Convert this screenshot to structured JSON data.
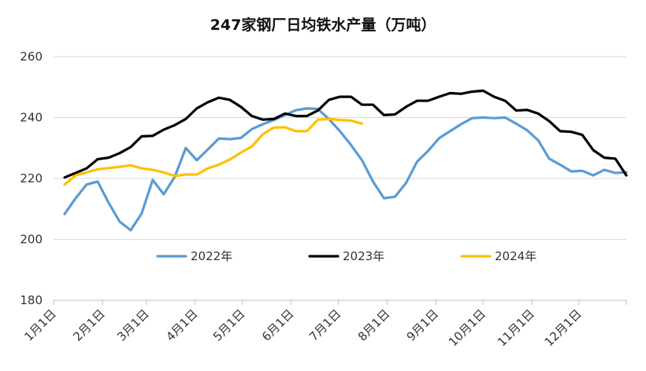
{
  "chart_data": {
    "type": "line",
    "title": "247家钢厂日均铁水产量（万吨）",
    "xlabel": "",
    "ylabel": "",
    "ylim": [
      180,
      260
    ],
    "yticks": [
      180,
      200,
      220,
      240,
      260
    ],
    "grid": "horizontal",
    "legend_position": "inside-bottom",
    "x_domain_weeks": [
      0,
      52
    ],
    "xticks": [
      {
        "label": "1月1日",
        "week": 0
      },
      {
        "label": "2月1日",
        "week": 4.43
      },
      {
        "label": "3月1日",
        "week": 8.43
      },
      {
        "label": "4月1日",
        "week": 12.86
      },
      {
        "label": "5月1日",
        "week": 17.14
      },
      {
        "label": "6月1日",
        "week": 21.57
      },
      {
        "label": "7月1日",
        "week": 25.86
      },
      {
        "label": "8月1日",
        "week": 30.29
      },
      {
        "label": "9月1日",
        "week": 34.71
      },
      {
        "label": "10月1日",
        "week": 39
      },
      {
        "label": "11月1日",
        "week": 43.43
      },
      {
        "label": "12月1日",
        "week": 47.71
      }
    ],
    "series": [
      {
        "name": "2022年",
        "color": "#5b9bd5",
        "x": [
          1,
          2,
          3,
          4,
          5,
          6,
          7,
          8,
          9,
          10,
          11,
          12,
          13,
          14,
          15,
          16,
          17,
          18,
          19,
          20,
          21,
          22,
          23,
          24,
          25,
          26,
          27,
          28,
          29,
          30,
          31,
          32,
          33,
          34,
          35,
          36,
          37,
          38,
          39,
          40,
          41,
          42,
          43,
          44,
          45,
          46,
          47,
          48,
          49,
          50,
          51,
          52
        ],
        "values": [
          208.3,
          213.5,
          218.0,
          219.0,
          212.0,
          205.8,
          203.0,
          208.5,
          219.5,
          214.8,
          220.5,
          230.0,
          226.0,
          229.5,
          233.1,
          232.9,
          233.3,
          236.2,
          237.8,
          239.2,
          240.8,
          242.4,
          243.0,
          242.8,
          239.5,
          235.5,
          231.0,
          226.0,
          219.0,
          213.5,
          214.0,
          218.5,
          225.5,
          229.0,
          233.2,
          235.5,
          237.8,
          239.8,
          240.0,
          239.8,
          240.0,
          238.0,
          235.8,
          232.5,
          226.5,
          224.5,
          222.3,
          222.5,
          221.0,
          222.8,
          221.8,
          222.0
        ]
      },
      {
        "name": "2023年",
        "color": "#000000",
        "x": [
          1,
          2,
          3,
          4,
          5,
          6,
          7,
          8,
          9,
          10,
          11,
          12,
          13,
          14,
          15,
          16,
          17,
          18,
          19,
          20,
          21,
          22,
          23,
          24,
          25,
          26,
          27,
          28,
          29,
          30,
          31,
          32,
          33,
          34,
          35,
          36,
          37,
          38,
          39,
          40,
          41,
          42,
          43,
          44,
          45,
          46,
          47,
          48,
          49,
          50,
          51,
          52
        ],
        "values": [
          220.3,
          221.8,
          223.3,
          226.3,
          226.8,
          228.3,
          230.3,
          233.8,
          234.0,
          236.0,
          237.5,
          239.5,
          243.0,
          245.0,
          246.5,
          245.8,
          243.5,
          240.5,
          239.3,
          239.5,
          241.3,
          240.5,
          240.5,
          242.3,
          245.8,
          246.8,
          246.8,
          244.2,
          244.2,
          240.8,
          241.0,
          243.5,
          245.5,
          245.5,
          246.8,
          248.0,
          247.8,
          248.5,
          248.8,
          246.8,
          245.5,
          242.3,
          242.5,
          241.3,
          238.8,
          235.5,
          235.3,
          234.3,
          229.3,
          226.8,
          226.5,
          221.0
        ]
      },
      {
        "name": "2024年",
        "color": "#ffc000",
        "x": [
          1,
          2,
          3,
          4,
          5,
          6,
          7,
          8,
          9,
          10,
          11,
          12,
          13,
          14,
          15,
          16,
          17,
          18,
          19,
          20,
          21,
          22,
          23,
          24,
          25,
          26,
          27,
          28
        ],
        "values": [
          218.0,
          221.0,
          222.0,
          223.0,
          223.4,
          223.8,
          224.3,
          223.3,
          222.8,
          222.0,
          220.8,
          221.3,
          221.3,
          223.3,
          224.5,
          226.2,
          228.5,
          230.5,
          234.5,
          236.7,
          236.8,
          235.5,
          235.5,
          239.3,
          239.5,
          239.2,
          239.0,
          238.0
        ]
      }
    ]
  }
}
